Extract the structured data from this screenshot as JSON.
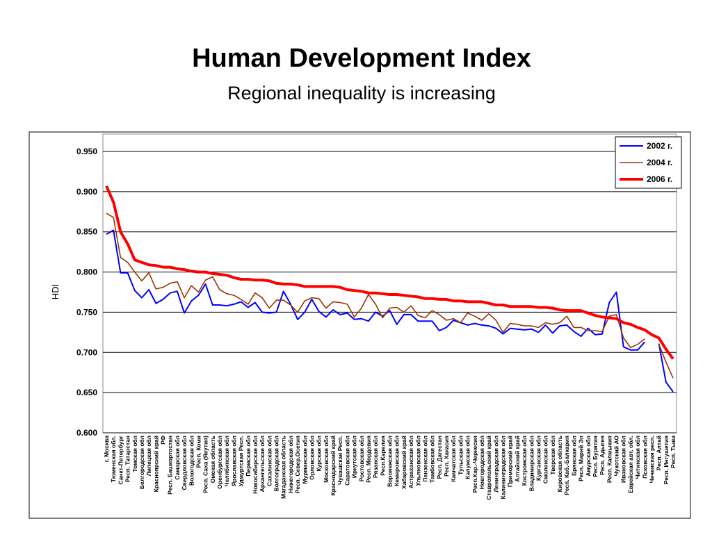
{
  "chart_data": {
    "type": "line",
    "title": "Human Development Index",
    "subtitle": "Regional inequality is increasing",
    "y_label": "HDI",
    "categories": [
      "г. Москва",
      "Тюменская обл.",
      "Санкт-Петербург",
      "Респ. Татарстан",
      "Томская обл",
      "Белгородская обл",
      "Липецкая обл",
      "Красноярский край",
      "РФ",
      "Респ. Башкортостан",
      "Самарская обл",
      "Свердловская обл",
      "Вологодская обл",
      "Респ. Коми",
      "Респ. Саха (Якутия)",
      "Омская область",
      "Оренбургская обл",
      "Челябинская обл",
      "Ярославская обл",
      "Удмуртская Респ.",
      "Пермская обл",
      "Новосибирская обл",
      "Архангельская обл",
      "Сахалинская обл",
      "Волгоградская обл",
      "Магаданская область",
      "Нижегородская обл",
      "Респ. Север.Осетия",
      "Мурманская обл",
      "Орловская обл",
      "Курская обл",
      "Московская обл",
      "Краснодарский край",
      "Чувашская Респ.",
      "Саратовская обл",
      "Иркутская обл",
      "Ростовская обл",
      "Респ. Мордовия",
      "Рязанская обл",
      "Респ.Карелия",
      "Воронежская обл",
      "Кемеровская обл",
      "Хабаровский край",
      "Астраханская обл",
      "Ульяновская обл",
      "Пензенская обл",
      "Тамбовская обл",
      "Респ. Дагестан",
      "Респ. Хакасия",
      "Камчатская обл",
      "Тульская обл",
      "Калужская обл",
      "Респ.Кар.-Черкесия",
      "Новгородская обл",
      "Ставропольский край",
      "Ленинградская обл",
      "Калининградская обл",
      "Приморский край",
      "Алтайский край",
      "Костромская обл",
      "Владимирская обл",
      "Курганская обл",
      "Смоленская обл",
      "Тверская обл",
      "Кировская область",
      "Респ. Каб.-Балкария",
      "Брянская обл",
      "Респ. Марий Эл",
      "Амурская обл",
      "Респ. Бурятия",
      "Респ. Адыгея",
      "Респ. Калмыкия",
      "Чукотский АО",
      "Ивановская обл",
      "Еврейская авт. обл.",
      "Читинская обл",
      "Псковская обл",
      "Чеченская респ.",
      "Респ. Алтай",
      "Респ. Ингушетия",
      "Респ. Тыва"
    ],
    "series": [
      {
        "name": "2002 г.",
        "color": "#0000ff",
        "width": 2,
        "values": [
          0.847,
          0.852,
          0.799,
          0.799,
          0.777,
          0.768,
          0.778,
          0.761,
          0.766,
          0.774,
          0.776,
          0.749,
          0.764,
          0.771,
          0.785,
          0.759,
          0.759,
          0.758,
          0.76,
          0.763,
          0.756,
          0.762,
          0.75,
          0.749,
          0.75,
          0.776,
          0.76,
          0.741,
          0.75,
          0.766,
          0.751,
          0.744,
          0.753,
          0.747,
          0.749,
          0.741,
          0.742,
          0.739,
          0.75,
          0.745,
          0.752,
          0.735,
          0.747,
          0.747,
          0.739,
          0.739,
          0.739,
          0.727,
          0.731,
          0.74,
          0.737,
          0.734,
          0.736,
          0.734,
          0.733,
          0.73,
          0.723,
          0.73,
          0.729,
          0.728,
          0.729,
          0.725,
          0.734,
          0.724,
          0.733,
          0.734,
          0.726,
          0.72,
          0.73,
          0.722,
          0.723,
          0.762,
          0.775,
          0.707,
          0.703,
          0.703,
          0.713,
          null,
          0.711,
          0.663,
          0.651
        ]
      },
      {
        "name": "2004 г.",
        "color": "#993300",
        "width": 1.6,
        "values": [
          0.873,
          0.868,
          0.818,
          0.812,
          0.8,
          0.789,
          0.799,
          0.779,
          0.781,
          0.786,
          0.788,
          0.768,
          0.783,
          0.775,
          0.79,
          0.794,
          0.778,
          0.773,
          0.771,
          0.766,
          0.76,
          0.774,
          0.768,
          0.755,
          0.765,
          0.765,
          0.759,
          0.75,
          0.764,
          0.768,
          0.767,
          0.755,
          0.763,
          0.762,
          0.76,
          0.744,
          0.755,
          0.772,
          0.76,
          0.743,
          0.755,
          0.756,
          0.75,
          0.758,
          0.746,
          0.743,
          0.752,
          0.747,
          0.74,
          0.742,
          0.737,
          0.749,
          0.745,
          0.74,
          0.748,
          0.74,
          0.725,
          0.736,
          0.735,
          0.733,
          0.733,
          0.731,
          0.737,
          0.735,
          0.737,
          0.745,
          0.731,
          0.731,
          0.727,
          0.727,
          0.726,
          0.745,
          0.747,
          0.718,
          0.706,
          0.71,
          0.717,
          null,
          0.71,
          0.688,
          0.668
        ]
      },
      {
        "name": "2006 г.",
        "color": "#ff0000",
        "width": 4,
        "values": [
          0.907,
          0.887,
          0.85,
          0.835,
          0.815,
          0.812,
          0.809,
          0.808,
          0.806,
          0.806,
          0.804,
          0.803,
          0.801,
          0.8,
          0.8,
          0.798,
          0.797,
          0.796,
          0.793,
          0.791,
          0.791,
          0.79,
          0.79,
          0.789,
          0.786,
          0.785,
          0.785,
          0.784,
          0.782,
          0.782,
          0.782,
          0.782,
          0.782,
          0.781,
          0.778,
          0.777,
          0.776,
          0.774,
          0.774,
          0.773,
          0.772,
          0.772,
          0.771,
          0.77,
          0.769,
          0.767,
          0.767,
          0.766,
          0.766,
          0.764,
          0.764,
          0.763,
          0.763,
          0.763,
          0.761,
          0.759,
          0.759,
          0.757,
          0.757,
          0.757,
          0.757,
          0.756,
          0.756,
          0.755,
          0.753,
          0.752,
          0.752,
          0.752,
          0.749,
          0.746,
          0.744,
          0.743,
          0.742,
          0.737,
          0.735,
          0.731,
          0.728,
          0.722,
          0.718,
          0.704,
          0.692
        ]
      }
    ],
    "ylim": [
      0.6,
      0.95
    ],
    "yticks": [
      {
        "value": 0.6,
        "label": "0.600"
      },
      {
        "value": 0.65,
        "label": "0.650"
      },
      {
        "value": 0.7,
        "label": "0.700"
      },
      {
        "value": 0.75,
        "label": "0.750"
      },
      {
        "value": 0.8,
        "label": "0.800"
      },
      {
        "value": 0.85,
        "label": "0.850"
      },
      {
        "value": 0.9,
        "label": "0.900"
      },
      {
        "value": 0.95,
        "label": "0.950"
      }
    ],
    "grid": true,
    "legend": "top-right"
  }
}
